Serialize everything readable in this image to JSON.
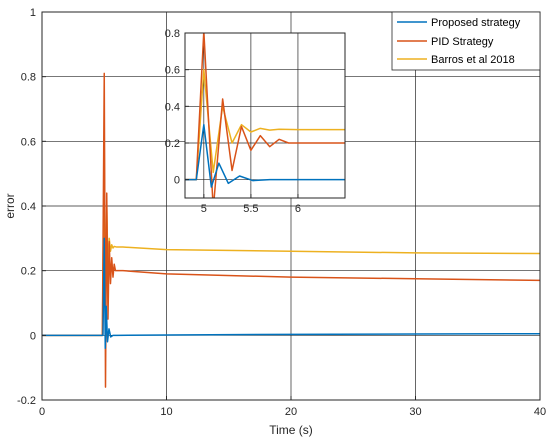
{
  "chart_data": [
    {
      "type": "line",
      "title": "",
      "xlabel": "Time (s)",
      "ylabel": "error",
      "xlim": [
        0,
        40
      ],
      "ylim": [
        -0.2,
        1
      ],
      "xticks": [
        0,
        10,
        20,
        30,
        40
      ],
      "yticks": [
        -0.2,
        0,
        0.2,
        0.4,
        0.6,
        0.8,
        1
      ],
      "grid": true,
      "legend_position": "top-right",
      "series": [
        {
          "name": "Proposed strategy",
          "color": "#0072bd",
          "x": [
            0,
            4.9,
            5.0,
            5.08,
            5.16,
            5.26,
            5.38,
            5.52,
            5.7,
            6.0,
            10,
            20,
            30,
            40
          ],
          "y": [
            0,
            0,
            0.3,
            -0.04,
            0.09,
            -0.02,
            0.02,
            -0.005,
            0,
            0,
            0.001,
            0.003,
            0.004,
            0.005
          ]
        },
        {
          "name": "PID Strategy",
          "color": "#d95319",
          "x": [
            0,
            4.85,
            5.0,
            5.1,
            5.2,
            5.3,
            5.4,
            5.5,
            5.6,
            5.7,
            5.8,
            5.9,
            6.0,
            6.2,
            6.5,
            10,
            20,
            30,
            40
          ],
          "y": [
            0,
            0,
            0.81,
            -0.16,
            0.44,
            0.05,
            0.29,
            0.16,
            0.24,
            0.18,
            0.22,
            0.2,
            0.2,
            0.2,
            0.2,
            0.19,
            0.18,
            0.175,
            0.17
          ]
        },
        {
          "name": "Barros et al 2018",
          "color": "#edb120",
          "x": [
            0,
            4.85,
            5.0,
            5.1,
            5.2,
            5.3,
            5.4,
            5.5,
            5.6,
            5.7,
            5.8,
            6.0,
            6.5,
            10,
            20,
            30,
            40
          ],
          "y": [
            0,
            0,
            0.6,
            0.04,
            0.4,
            0.2,
            0.3,
            0.26,
            0.28,
            0.27,
            0.275,
            0.273,
            0.273,
            0.265,
            0.26,
            0.255,
            0.253
          ]
        }
      ]
    },
    {
      "type": "line",
      "title": "",
      "xlabel": "",
      "ylabel": "",
      "xlim": [
        4.8,
        6.5
      ],
      "ylim": [
        -0.1,
        0.8
      ],
      "xticks": [
        5,
        5.5,
        6
      ],
      "yticks": [
        0,
        0.2,
        0.4,
        0.6,
        0.8
      ],
      "grid": true,
      "series": [
        {
          "color": "#0072bd",
          "x": [
            4.8,
            4.92,
            5.0,
            5.08,
            5.16,
            5.26,
            5.38,
            5.52,
            5.7,
            6.0,
            6.5
          ],
          "y": [
            0,
            0,
            0.3,
            -0.04,
            0.09,
            -0.02,
            0.02,
            -0.005,
            0,
            0,
            0
          ]
        },
        {
          "color": "#d95319",
          "x": [
            4.8,
            4.92,
            5.0,
            5.1,
            5.2,
            5.3,
            5.4,
            5.5,
            5.6,
            5.7,
            5.8,
            5.9,
            6.0,
            6.2,
            6.5
          ],
          "y": [
            0,
            0,
            0.81,
            -0.16,
            0.44,
            0.05,
            0.29,
            0.16,
            0.24,
            0.18,
            0.22,
            0.2,
            0.2,
            0.2,
            0.2
          ]
        },
        {
          "color": "#edb120",
          "x": [
            4.8,
            4.92,
            5.0,
            5.1,
            5.2,
            5.3,
            5.4,
            5.5,
            5.6,
            5.7,
            5.8,
            6.0,
            6.5
          ],
          "y": [
            0,
            0,
            0.6,
            0.04,
            0.4,
            0.2,
            0.3,
            0.26,
            0.28,
            0.27,
            0.275,
            0.273,
            0.273
          ]
        }
      ]
    }
  ]
}
